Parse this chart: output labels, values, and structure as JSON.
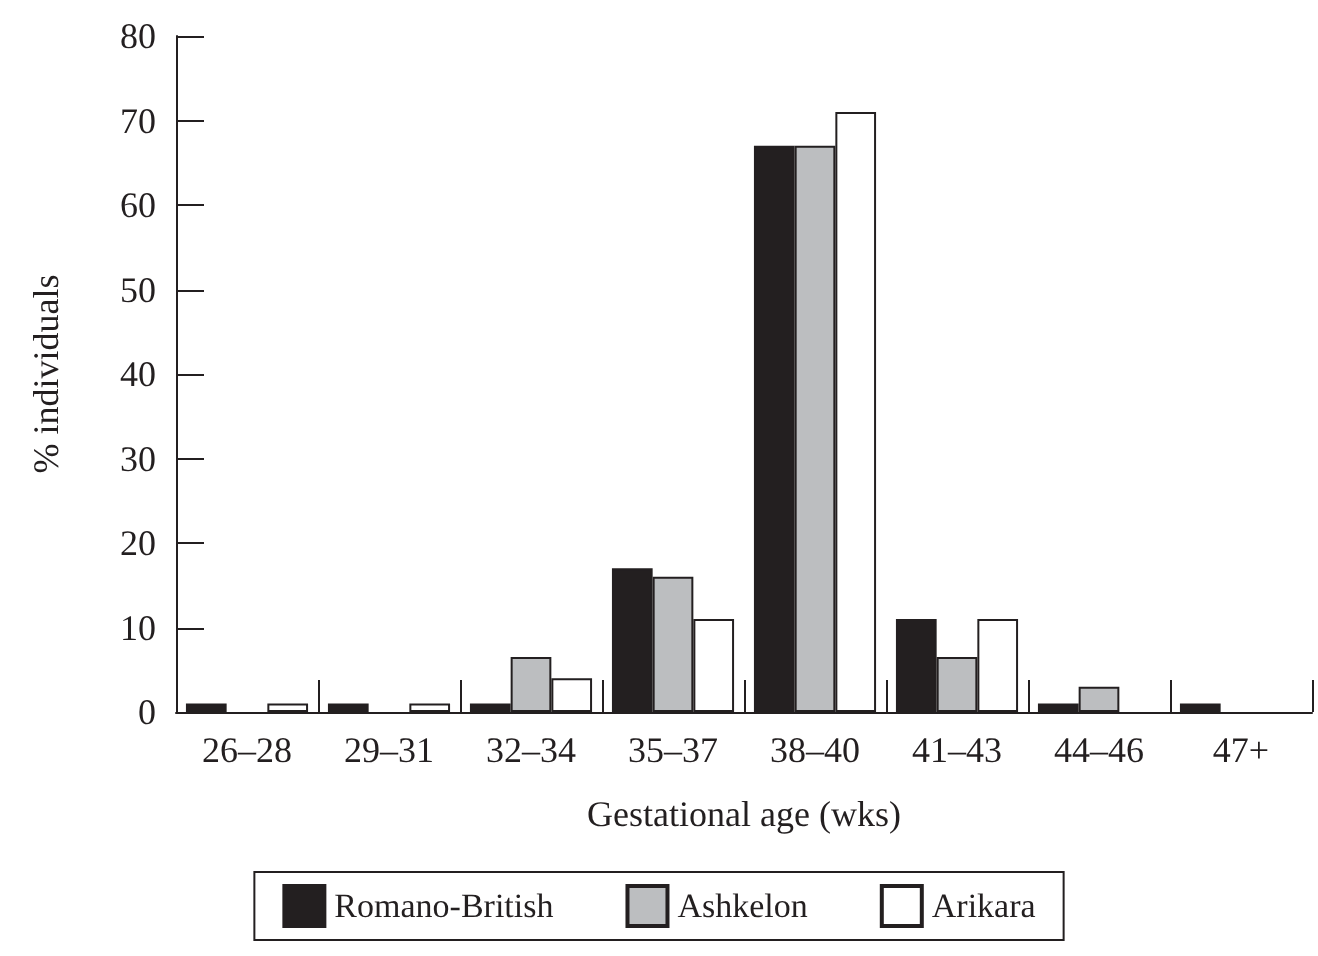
{
  "chart_data": {
    "type": "bar",
    "xlabel": "Gestational age (wks)",
    "ylabel": "% individuals",
    "categories": [
      "26–28",
      "29–31",
      "32–34",
      "35–37",
      "38–40",
      "41–43",
      "44–46",
      "47+"
    ],
    "series": [
      {
        "name": "Romano-British",
        "color": "#231f20",
        "values": [
          1,
          1,
          1,
          17,
          67,
          11,
          1,
          1
        ]
      },
      {
        "name": "Ashkelon",
        "color": "#bcbec0",
        "values": [
          0,
          0,
          6.5,
          16,
          67,
          6.5,
          3,
          0
        ]
      },
      {
        "name": "Arikara",
        "color": "#ffffff",
        "values": [
          1,
          1,
          4,
          11,
          71,
          11,
          0,
          0
        ]
      }
    ],
    "ylim": [
      0,
      80
    ],
    "yticks": [
      0,
      10,
      20,
      30,
      40,
      50,
      60,
      70,
      80
    ],
    "grid": false,
    "legend": "bottom"
  }
}
